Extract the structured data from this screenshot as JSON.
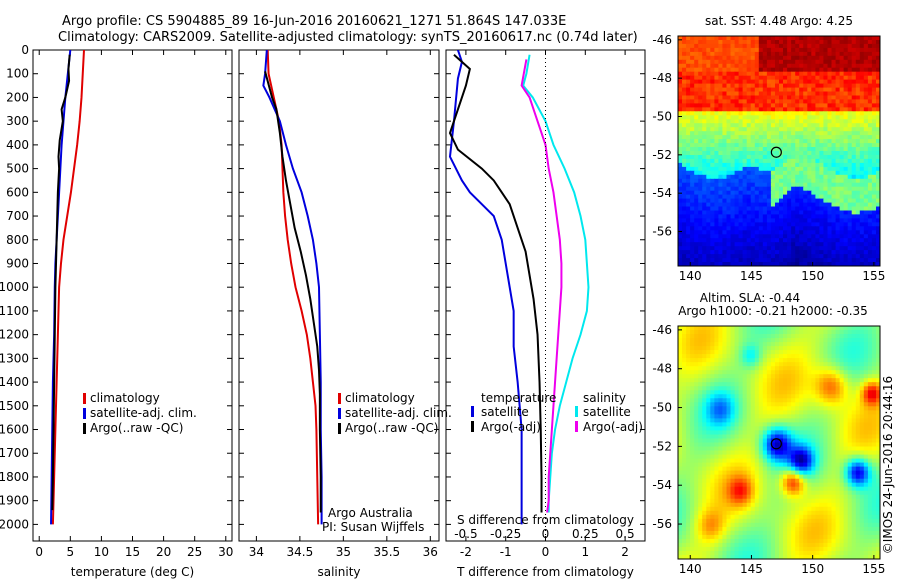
{
  "title": {
    "line1": "Argo profile: CS 5904885_89 16-Jun-2016 20160621_1271 51.864S 147.033E",
    "line2": "Climatology: CARS2009. Satellite-adjusted climatology: synTS_20160617.nc (0.74d later)"
  },
  "colors": {
    "climatology": "#e00000",
    "satellite": "#0000dd",
    "argo": "#000000",
    "sat_sal": "#00e8ee",
    "argo_sal": "#ee00ee"
  },
  "chart_data": [
    {
      "type": "line",
      "id": "temperature",
      "xlabel": "temperature (deg C)",
      "ylabel": "",
      "xlim": [
        -1,
        31
      ],
      "ylim": [
        2070,
        0
      ],
      "xticks": [
        0,
        5,
        10,
        15,
        20,
        25,
        30
      ],
      "yticks": [
        0,
        100,
        200,
        300,
        400,
        500,
        600,
        700,
        800,
        900,
        1000,
        1100,
        1200,
        1300,
        1400,
        1500,
        1600,
        1700,
        1800,
        1900,
        2000
      ],
      "legend": {
        "climatology": "climatology",
        "satellite": "satellite-adj. clim.",
        "argo": "Argo(..raw -QC)"
      },
      "series": [
        {
          "name": "climatology",
          "color": "#e00000",
          "points": [
            [
              7.2,
              0
            ],
            [
              7.0,
              100
            ],
            [
              6.8,
              200
            ],
            [
              6.5,
              300
            ],
            [
              6.1,
              400
            ],
            [
              5.6,
              500
            ],
            [
              5.1,
              600
            ],
            [
              4.5,
              700
            ],
            [
              3.9,
              800
            ],
            [
              3.5,
              900
            ],
            [
              3.2,
              1000
            ],
            [
              3.0,
              1200
            ],
            [
              2.8,
              1400
            ],
            [
              2.6,
              1600
            ],
            [
              2.4,
              1800
            ],
            [
              2.2,
              2000
            ]
          ]
        },
        {
          "name": "satellite-adj. clim.",
          "color": "#0000dd",
          "points": [
            [
              5.0,
              0
            ],
            [
              4.6,
              100
            ],
            [
              4.2,
              200
            ],
            [
              3.9,
              300
            ],
            [
              3.6,
              400
            ],
            [
              3.4,
              500
            ],
            [
              3.2,
              600
            ],
            [
              3.0,
              700
            ],
            [
              2.8,
              800
            ],
            [
              2.6,
              900
            ],
            [
              2.5,
              1000
            ],
            [
              2.4,
              1200
            ],
            [
              2.2,
              1400
            ],
            [
              2.1,
              1600
            ],
            [
              2.0,
              1800
            ],
            [
              1.9,
              2000
            ]
          ]
        },
        {
          "name": "Argo(..raw -QC)",
          "color": "#000000",
          "points": [
            [
              4.9,
              20
            ],
            [
              4.7,
              80
            ],
            [
              4.8,
              130
            ],
            [
              4.2,
              200
            ],
            [
              3.6,
              250
            ],
            [
              3.8,
              300
            ],
            [
              3.3,
              380
            ],
            [
              3.1,
              450
            ],
            [
              3.2,
              500
            ],
            [
              3.0,
              600
            ],
            [
              2.9,
              700
            ],
            [
              2.8,
              800
            ],
            [
              2.7,
              900
            ],
            [
              2.6,
              1000
            ],
            [
              2.5,
              1200
            ],
            [
              2.4,
              1400
            ],
            [
              2.3,
              1600
            ],
            [
              2.2,
              1800
            ],
            [
              2.1,
              1940
            ]
          ]
        }
      ]
    },
    {
      "type": "line",
      "id": "salinity",
      "xlabel": "salinity",
      "xlim": [
        33.8,
        36.1
      ],
      "ylim": [
        2070,
        0
      ],
      "xticks": [
        34,
        34.5,
        35,
        35.5,
        36
      ],
      "legend": {
        "climatology": "climatology",
        "satellite": "satellite-adj. clim.",
        "argo": "Argo(..raw -QC)"
      },
      "annotations": [
        "Argo Australia",
        "PI: Susan Wijffels"
      ],
      "series": [
        {
          "name": "climatology",
          "color": "#e00000",
          "points": [
            [
              34.13,
              0
            ],
            [
              34.14,
              100
            ],
            [
              34.2,
              200
            ],
            [
              34.26,
              300
            ],
            [
              34.29,
              400
            ],
            [
              34.3,
              500
            ],
            [
              34.31,
              600
            ],
            [
              34.33,
              700
            ],
            [
              34.36,
              800
            ],
            [
              34.4,
              900
            ],
            [
              34.45,
              1000
            ],
            [
              34.52,
              1100
            ],
            [
              34.58,
              1200
            ],
            [
              34.62,
              1300
            ],
            [
              34.65,
              1400
            ],
            [
              34.68,
              1500
            ],
            [
              34.69,
              1600
            ],
            [
              34.7,
              1800
            ],
            [
              34.71,
              2000
            ]
          ]
        },
        {
          "name": "satellite-adj. clim.",
          "color": "#0000dd",
          "points": [
            [
              34.12,
              0
            ],
            [
              34.1,
              100
            ],
            [
              34.08,
              150
            ],
            [
              34.15,
              200
            ],
            [
              34.27,
              300
            ],
            [
              34.34,
              400
            ],
            [
              34.42,
              500
            ],
            [
              34.52,
              600
            ],
            [
              34.59,
              700
            ],
            [
              34.65,
              800
            ],
            [
              34.69,
              900
            ],
            [
              34.72,
              1000
            ],
            [
              34.73,
              1200
            ],
            [
              34.74,
              1400
            ],
            [
              34.74,
              1600
            ],
            [
              34.75,
              1800
            ],
            [
              34.75,
              2000
            ]
          ]
        },
        {
          "name": "Argo(..raw -QC)",
          "color": "#000000",
          "points": [
            [
              34.1,
              90
            ],
            [
              34.18,
              200
            ],
            [
              34.23,
              250
            ],
            [
              34.27,
              350
            ],
            [
              34.3,
              450
            ],
            [
              34.34,
              550
            ],
            [
              34.39,
              650
            ],
            [
              34.44,
              750
            ],
            [
              34.51,
              850
            ],
            [
              34.57,
              950
            ],
            [
              34.62,
              1050
            ],
            [
              34.66,
              1150
            ],
            [
              34.7,
              1250
            ],
            [
              34.72,
              1350
            ],
            [
              34.73,
              1450
            ],
            [
              34.73,
              1600
            ],
            [
              34.74,
              1800
            ],
            [
              34.74,
              1950
            ]
          ]
        }
      ]
    },
    {
      "type": "line",
      "id": "difference",
      "xlabel": "T difference from climatology",
      "x2label": "S difference from climatology",
      "xlim": [
        -2.5,
        2.5
      ],
      "ylim": [
        2070,
        0
      ],
      "xticks": [
        -2,
        -1,
        0,
        1,
        2
      ],
      "x2ticks": [
        "-0.5",
        "-0.25",
        "0",
        "0.25",
        "0.5"
      ],
      "legend": {
        "temp_head": "temperature",
        "sal_head": "salinity",
        "satellite": "satellite",
        "argo": "Argo(-adj)"
      },
      "series": [
        {
          "name": "temperature satellite",
          "color": "#0000dd",
          "points": [
            [
              -2.2,
              0
            ],
            [
              -2.1,
              50
            ],
            [
              -2.2,
              120
            ],
            [
              -2.3,
              300
            ],
            [
              -2.4,
              450
            ],
            [
              -2.1,
              550
            ],
            [
              -1.9,
              600
            ],
            [
              -1.6,
              650
            ],
            [
              -1.3,
              700
            ],
            [
              -1.1,
              800
            ],
            [
              -1.0,
              900
            ],
            [
              -0.9,
              1000
            ],
            [
              -0.8,
              1100
            ],
            [
              -0.8,
              1250
            ],
            [
              -0.7,
              1400
            ],
            [
              -0.6,
              1600
            ],
            [
              -0.6,
              1800
            ],
            [
              -0.6,
              2000
            ]
          ]
        },
        {
          "name": "temperature Argo(-adj)",
          "color": "#000000",
          "points": [
            [
              -2.3,
              20
            ],
            [
              -1.9,
              80
            ],
            [
              -2.0,
              150
            ],
            [
              -2.4,
              350
            ],
            [
              -2.2,
              420
            ],
            [
              -1.6,
              500
            ],
            [
              -1.3,
              550
            ],
            [
              -1.1,
              600
            ],
            [
              -0.9,
              650
            ],
            [
              -0.7,
              750
            ],
            [
              -0.5,
              850
            ],
            [
              -0.4,
              950
            ],
            [
              -0.3,
              1050
            ],
            [
              -0.2,
              1200
            ],
            [
              -0.15,
              1400
            ],
            [
              -0.12,
              1600
            ],
            [
              -0.1,
              1800
            ],
            [
              -0.1,
              1950
            ]
          ]
        },
        {
          "name": "salinity satellite",
          "color": "#00e8ee",
          "points": [
            [
              -0.1,
              20
            ],
            [
              -0.12,
              100
            ],
            [
              -0.14,
              150
            ],
            [
              -0.08,
              200
            ],
            [
              0.0,
              300
            ],
            [
              0.05,
              400
            ],
            [
              0.12,
              500
            ],
            [
              0.18,
              600
            ],
            [
              0.22,
              700
            ],
            [
              0.25,
              800
            ],
            [
              0.26,
              900
            ],
            [
              0.27,
              1000
            ],
            [
              0.26,
              1100
            ],
            [
              0.22,
              1200
            ],
            [
              0.17,
              1300
            ],
            [
              0.13,
              1400
            ],
            [
              0.09,
              1500
            ],
            [
              0.06,
              1600
            ],
            [
              0.04,
              1700
            ],
            [
              0.03,
              1800
            ],
            [
              0.02,
              1900
            ],
            [
              0.02,
              1950
            ]
          ]
        },
        {
          "name": "salinity Argo(-adj)",
          "color": "#ee00ee",
          "points": [
            [
              -0.12,
              40
            ],
            [
              -0.15,
              150
            ],
            [
              -0.1,
              200
            ],
            [
              -0.05,
              300
            ],
            [
              0.0,
              400
            ],
            [
              0.02,
              500
            ],
            [
              0.05,
              600
            ],
            [
              0.07,
              700
            ],
            [
              0.09,
              800
            ],
            [
              0.1,
              900
            ],
            [
              0.1,
              1000
            ],
            [
              0.09,
              1100
            ],
            [
              0.08,
              1200
            ],
            [
              0.07,
              1300
            ],
            [
              0.06,
              1400
            ],
            [
              0.05,
              1500
            ],
            [
              0.04,
              1600
            ],
            [
              0.03,
              1700
            ],
            [
              0.02,
              1800
            ],
            [
              0.02,
              1900
            ],
            [
              0.01,
              1950
            ]
          ]
        }
      ]
    },
    {
      "type": "heatmap",
      "id": "sst_map",
      "title": "sat. SST: 4.48 Argo: 4.25",
      "xlim": [
        139,
        155.5
      ],
      "ylim": [
        -57.8,
        -45.8
      ],
      "xticks": [
        140,
        145,
        150,
        155
      ],
      "yticks": [
        -46,
        -48,
        -50,
        -52,
        -54,
        -56
      ],
      "marker": [
        147.033,
        -51.864
      ]
    },
    {
      "type": "heatmap",
      "id": "sla_map",
      "title": "Altim. SLA: -0.44",
      "subtitle": "Argo h1000: -0.21 h2000: -0.35",
      "xlim": [
        139,
        155.5
      ],
      "ylim": [
        -57.8,
        -45.8
      ],
      "xticks": [
        140,
        145,
        150,
        155
      ],
      "yticks": [
        -46,
        -48,
        -50,
        -52,
        -54,
        -56
      ],
      "marker": [
        147.033,
        -51.864
      ]
    }
  ],
  "footer": {
    "stamp": "©IMOS 24-Jun-2016 20:44:16"
  }
}
